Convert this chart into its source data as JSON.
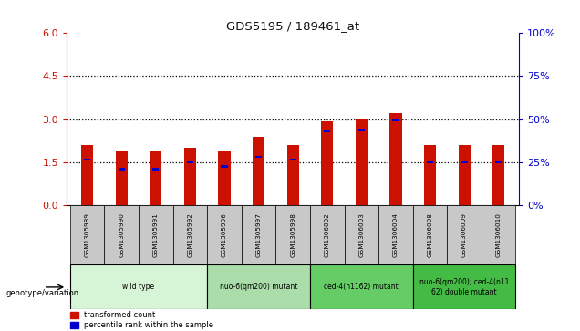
{
  "title": "GDS5195 / 189461_at",
  "samples": [
    "GSM1305989",
    "GSM1305990",
    "GSM1305991",
    "GSM1305992",
    "GSM1305996",
    "GSM1305997",
    "GSM1305998",
    "GSM1306002",
    "GSM1306003",
    "GSM1306004",
    "GSM1306008",
    "GSM1306009",
    "GSM1306010"
  ],
  "red_values": [
    2.1,
    1.88,
    1.88,
    2.0,
    1.88,
    2.4,
    2.1,
    2.92,
    3.02,
    3.22,
    2.1,
    2.1,
    2.1
  ],
  "blue_values": [
    1.58,
    1.26,
    1.26,
    1.5,
    1.35,
    1.68,
    1.58,
    2.58,
    2.62,
    2.96,
    1.5,
    1.5,
    1.5
  ],
  "ylim": [
    0,
    6
  ],
  "yticks_left": [
    0,
    1.5,
    3,
    4.5,
    6
  ],
  "yticks_right": [
    0,
    25,
    50,
    75,
    100
  ],
  "dotted_lines": [
    1.5,
    3.0,
    4.5
  ],
  "bar_color": "#cc1100",
  "blue_color": "#0000cc",
  "bar_width": 0.35,
  "groups": [
    {
      "label": "wild type",
      "start": 0,
      "end": 3,
      "color": "#d6f5d6"
    },
    {
      "label": "nuo-6(qm200) mutant",
      "start": 4,
      "end": 6,
      "color": "#aaddaa"
    },
    {
      "label": "ced-4(n1162) mutant",
      "start": 7,
      "end": 9,
      "color": "#66cc66"
    },
    {
      "label": "nuo-6(qm200); ced-4(n11\n62) double mutant",
      "start": 10,
      "end": 12,
      "color": "#44bb44"
    }
  ],
  "legend_red": "transformed count",
  "legend_blue": "percentile rank within the sample",
  "genotype_label": "genotype/variation",
  "title_color": "#111111",
  "left_axis_color": "#cc1100",
  "right_axis_color": "#0000cc",
  "cell_color": "#c8c8c8"
}
